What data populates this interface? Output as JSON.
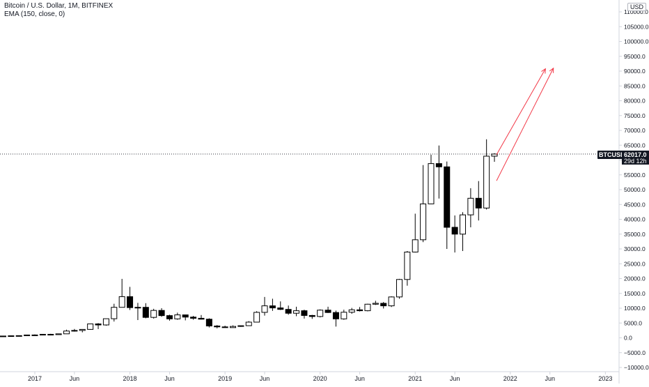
{
  "header": {
    "title": "Bitcoin / U.S. Dollar, 1M, BITFINEX",
    "indicator": "EMA (150, close, 0)",
    "currency": "USD"
  },
  "price_tag": {
    "symbol": "BTCUSD",
    "value": "62017.0",
    "countdown": "29d 12h"
  },
  "colors": {
    "up_fill": "#ffffff",
    "down_fill": "#000000",
    "candle_border": "#000000",
    "projection": "#f23645",
    "price_line": "#131722",
    "axis_text": "#131722",
    "axis_line": "#d1d4dc"
  },
  "chart_data": {
    "type": "candlestick",
    "title": "Bitcoin / U.S. Dollar, 1M, BITFINEX",
    "ylabel": "USD",
    "ylim": [
      -12000,
      114000
    ],
    "y_ticks": [
      "110000.0",
      "105000.0",
      "100000.0",
      "95000.0",
      "90000.0",
      "85000.0",
      "80000.0",
      "75000.0",
      "70000.0",
      "65000.0",
      "60000.0",
      "55000.0",
      "50000.0",
      "45000.0",
      "40000.0",
      "35000.0",
      "30000.0",
      "25000.0",
      "20000.0",
      "15000.0",
      "10000.0",
      "5000.0",
      "0.0",
      "−5000.0",
      "−10000.0"
    ],
    "y_tick_values": [
      110000,
      105000,
      100000,
      95000,
      90000,
      85000,
      80000,
      75000,
      70000,
      65000,
      60000,
      55000,
      50000,
      45000,
      40000,
      35000,
      30000,
      25000,
      20000,
      15000,
      10000,
      5000,
      0,
      -5000,
      -10000
    ],
    "x_ticks": [
      {
        "label": "2017",
        "x": "2017-01"
      },
      {
        "label": "Jun",
        "x": "2017-06"
      },
      {
        "label": "2018",
        "x": "2018-01"
      },
      {
        "label": "Jun",
        "x": "2018-06"
      },
      {
        "label": "2019",
        "x": "2019-01"
      },
      {
        "label": "Jun",
        "x": "2019-06"
      },
      {
        "label": "2020",
        "x": "2020-01"
      },
      {
        "label": "Jun",
        "x": "2020-06"
      },
      {
        "label": "2021",
        "x": "2021-01"
      },
      {
        "label": "Jun",
        "x": "2021-06"
      },
      {
        "label": "2022",
        "x": "2022-01"
      },
      {
        "label": "Jun",
        "x": "2022-06"
      },
      {
        "label": "2023",
        "x": "2023-01"
      }
    ],
    "current_price": 62017,
    "candles": [
      {
        "x": "2016-08",
        "o": 620,
        "h": 630,
        "l": 470,
        "c": 575
      },
      {
        "x": "2016-09",
        "o": 575,
        "h": 615,
        "l": 560,
        "c": 610
      },
      {
        "x": "2016-10",
        "o": 610,
        "h": 740,
        "l": 600,
        "c": 700
      },
      {
        "x": "2016-11",
        "o": 700,
        "h": 760,
        "l": 690,
        "c": 745
      },
      {
        "x": "2016-12",
        "o": 745,
        "h": 980,
        "l": 740,
        "c": 965
      },
      {
        "x": "2017-01",
        "o": 965,
        "h": 1150,
        "l": 760,
        "c": 970
      },
      {
        "x": "2017-02",
        "o": 970,
        "h": 1200,
        "l": 920,
        "c": 1190
      },
      {
        "x": "2017-03",
        "o": 1190,
        "h": 1350,
        "l": 890,
        "c": 1080
      },
      {
        "x": "2017-04",
        "o": 1080,
        "h": 1350,
        "l": 1060,
        "c": 1350
      },
      {
        "x": "2017-05",
        "o": 1350,
        "h": 2750,
        "l": 1300,
        "c": 2300
      },
      {
        "x": "2017-06",
        "o": 2300,
        "h": 3000,
        "l": 2100,
        "c": 2500
      },
      {
        "x": "2017-07",
        "o": 2500,
        "h": 2950,
        "l": 1850,
        "c": 2850
      },
      {
        "x": "2017-08",
        "o": 2850,
        "h": 4750,
        "l": 2700,
        "c": 4700
      },
      {
        "x": "2017-09",
        "o": 4700,
        "h": 4980,
        "l": 2950,
        "c": 4350
      },
      {
        "x": "2017-10",
        "o": 4350,
        "h": 6450,
        "l": 4100,
        "c": 6450
      },
      {
        "x": "2017-11",
        "o": 6450,
        "h": 11500,
        "l": 5500,
        "c": 10300
      },
      {
        "x": "2017-12",
        "o": 10300,
        "h": 19900,
        "l": 10300,
        "c": 13900
      },
      {
        "x": "2018-01",
        "o": 13900,
        "h": 17200,
        "l": 9400,
        "c": 10200
      },
      {
        "x": "2018-02",
        "o": 10200,
        "h": 11800,
        "l": 6000,
        "c": 10300
      },
      {
        "x": "2018-03",
        "o": 10300,
        "h": 11700,
        "l": 6600,
        "c": 6900
      },
      {
        "x": "2018-04",
        "o": 6900,
        "h": 9800,
        "l": 6500,
        "c": 9250
      },
      {
        "x": "2018-05",
        "o": 9250,
        "h": 10000,
        "l": 7100,
        "c": 7500
      },
      {
        "x": "2018-06",
        "o": 7500,
        "h": 7800,
        "l": 5800,
        "c": 6400
      },
      {
        "x": "2018-07",
        "o": 6400,
        "h": 8500,
        "l": 6100,
        "c": 7750
      },
      {
        "x": "2018-08",
        "o": 7750,
        "h": 7800,
        "l": 5900,
        "c": 7000
      },
      {
        "x": "2018-09",
        "o": 7000,
        "h": 7400,
        "l": 6100,
        "c": 6600
      },
      {
        "x": "2018-10",
        "o": 6600,
        "h": 7700,
        "l": 6200,
        "c": 6300
      },
      {
        "x": "2018-11",
        "o": 6300,
        "h": 6600,
        "l": 3500,
        "c": 4000
      },
      {
        "x": "2018-12",
        "o": 4000,
        "h": 4300,
        "l": 3200,
        "c": 3700
      },
      {
        "x": "2019-01",
        "o": 3700,
        "h": 4100,
        "l": 3400,
        "c": 3450
      },
      {
        "x": "2019-02",
        "o": 3450,
        "h": 4200,
        "l": 3400,
        "c": 3850
      },
      {
        "x": "2019-03",
        "o": 3850,
        "h": 4150,
        "l": 3700,
        "c": 4100
      },
      {
        "x": "2019-04",
        "o": 4100,
        "h": 5650,
        "l": 4050,
        "c": 5300
      },
      {
        "x": "2019-05",
        "o": 5300,
        "h": 9000,
        "l": 5300,
        "c": 8600
      },
      {
        "x": "2019-06",
        "o": 8600,
        "h": 13800,
        "l": 7500,
        "c": 10800
      },
      {
        "x": "2019-07",
        "o": 10800,
        "h": 13200,
        "l": 9100,
        "c": 10100
      },
      {
        "x": "2019-08",
        "o": 10100,
        "h": 12300,
        "l": 9400,
        "c": 9600
      },
      {
        "x": "2019-09",
        "o": 9600,
        "h": 10900,
        "l": 7800,
        "c": 8300
      },
      {
        "x": "2019-10",
        "o": 8300,
        "h": 10500,
        "l": 7300,
        "c": 9150
      },
      {
        "x": "2019-11",
        "o": 9150,
        "h": 9500,
        "l": 6500,
        "c": 7550
      },
      {
        "x": "2019-12",
        "o": 7550,
        "h": 7750,
        "l": 6400,
        "c": 7200
      },
      {
        "x": "2020-01",
        "o": 7200,
        "h": 9600,
        "l": 6900,
        "c": 9350
      },
      {
        "x": "2020-02",
        "o": 9350,
        "h": 10500,
        "l": 8400,
        "c": 8550
      },
      {
        "x": "2020-03",
        "o": 8550,
        "h": 9200,
        "l": 3800,
        "c": 6400
      },
      {
        "x": "2020-04",
        "o": 6400,
        "h": 9500,
        "l": 6100,
        "c": 8650
      },
      {
        "x": "2020-05",
        "o": 8650,
        "h": 10100,
        "l": 8100,
        "c": 9450
      },
      {
        "x": "2020-06",
        "o": 9450,
        "h": 10400,
        "l": 8900,
        "c": 9150
      },
      {
        "x": "2020-07",
        "o": 9150,
        "h": 11500,
        "l": 8950,
        "c": 11350
      },
      {
        "x": "2020-08",
        "o": 11350,
        "h": 12500,
        "l": 11100,
        "c": 11650
      },
      {
        "x": "2020-09",
        "o": 11650,
        "h": 12100,
        "l": 9900,
        "c": 10800
      },
      {
        "x": "2020-10",
        "o": 10800,
        "h": 14000,
        "l": 10400,
        "c": 13800
      },
      {
        "x": "2020-11",
        "o": 13800,
        "h": 19900,
        "l": 13200,
        "c": 19700
      },
      {
        "x": "2020-12",
        "o": 19700,
        "h": 29300,
        "l": 17600,
        "c": 28950
      },
      {
        "x": "2021-01",
        "o": 28950,
        "h": 41900,
        "l": 28800,
        "c": 33100
      },
      {
        "x": "2021-02",
        "o": 33100,
        "h": 58300,
        "l": 32300,
        "c": 45200
      },
      {
        "x": "2021-03",
        "o": 45200,
        "h": 61800,
        "l": 45100,
        "c": 58800
      },
      {
        "x": "2021-04",
        "o": 58800,
        "h": 64900,
        "l": 47000,
        "c": 57700
      },
      {
        "x": "2021-05",
        "o": 57700,
        "h": 59500,
        "l": 30000,
        "c": 37300
      },
      {
        "x": "2021-06",
        "o": 37300,
        "h": 41300,
        "l": 28800,
        "c": 35000
      },
      {
        "x": "2021-07",
        "o": 35000,
        "h": 42400,
        "l": 29300,
        "c": 41500
      },
      {
        "x": "2021-08",
        "o": 41500,
        "h": 50500,
        "l": 37300,
        "c": 47100
      },
      {
        "x": "2021-09",
        "o": 47100,
        "h": 52900,
        "l": 39600,
        "c": 43800
      },
      {
        "x": "2021-10",
        "o": 43800,
        "h": 67000,
        "l": 43300,
        "c": 61300
      },
      {
        "x": "2021-11",
        "o": 61300,
        "h": 62300,
        "l": 59400,
        "c": 62017
      }
    ],
    "projection_lines": [
      {
        "from": {
          "x": "2021-11",
          "y": 61800
        },
        "to": {
          "x": "2022-05",
          "y": 90800
        }
      },
      {
        "from": {
          "x": "2021-11",
          "y": 53000
        },
        "to": {
          "x": "2022-06",
          "y": 91000
        }
      }
    ]
  }
}
